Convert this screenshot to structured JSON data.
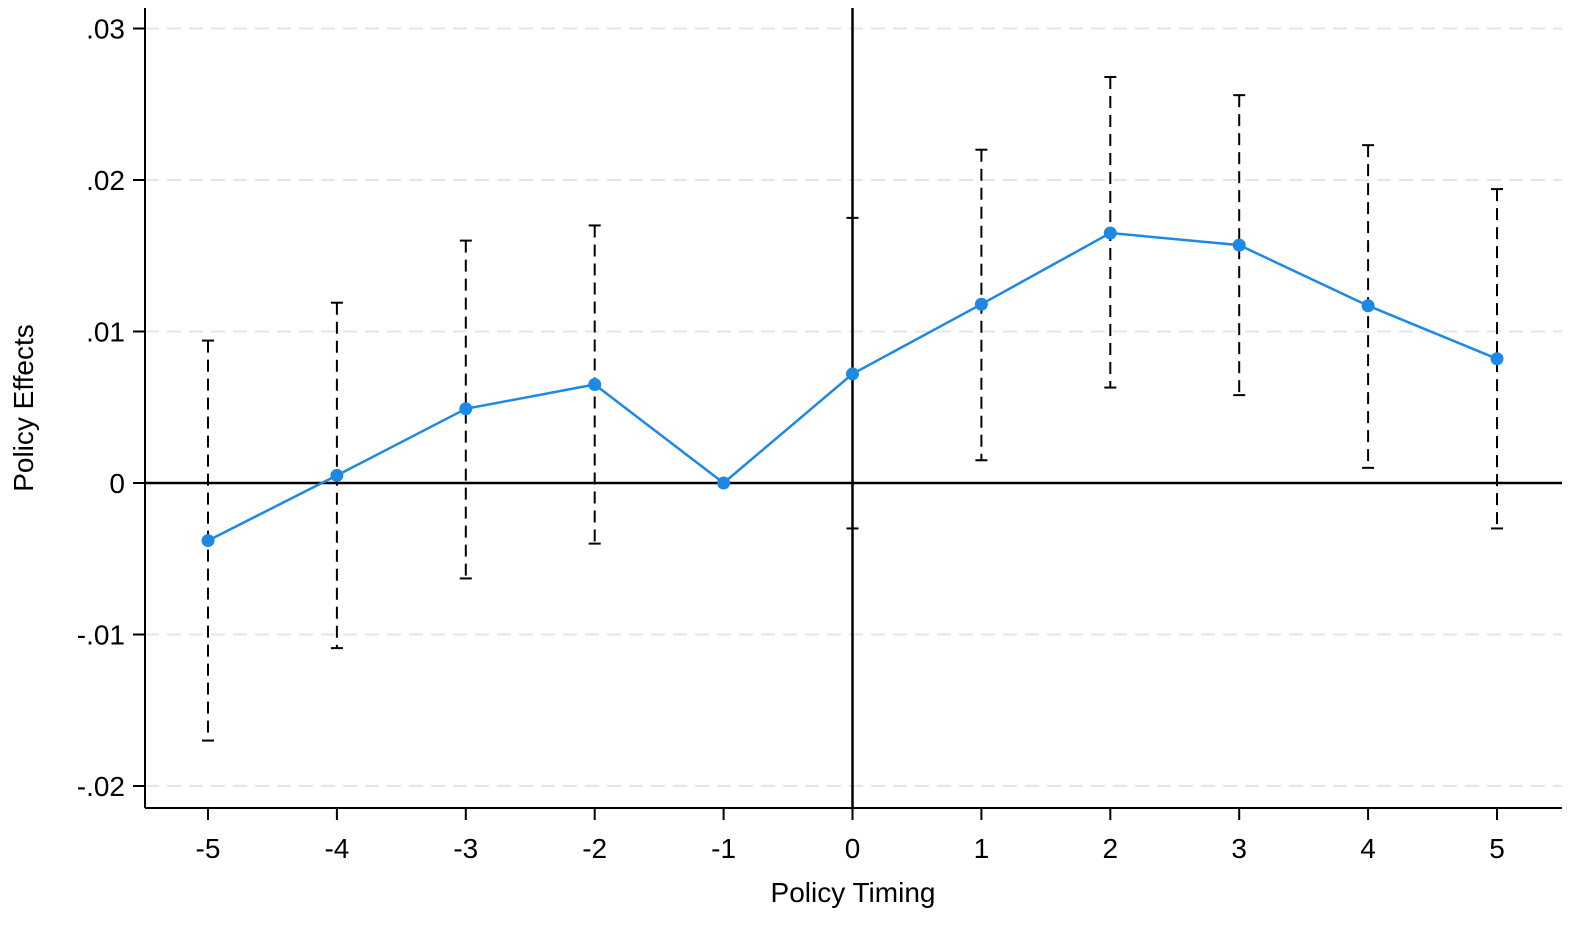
{
  "chart_data": {
    "type": "line",
    "title": "",
    "xlabel": "Policy Timing",
    "ylabel": "Policy Effects",
    "xlim": [
      -5.5,
      5.5
    ],
    "ylim": [
      -0.0215,
      0.0315
    ],
    "x_ticks": [
      -5,
      -4,
      -3,
      -2,
      -1,
      0,
      1,
      2,
      3,
      4,
      5
    ],
    "x_tick_labels": [
      "-5",
      "-4",
      "-3",
      "-2",
      "-1",
      "0",
      "1",
      "2",
      "3",
      "4",
      "5"
    ],
    "y_ticks": [
      -0.02,
      -0.01,
      0,
      0.01,
      0.02,
      0.03
    ],
    "y_tick_labels": [
      "-.02",
      "-.01",
      "0",
      ".01",
      ".02",
      ".03"
    ],
    "grid": "horizontal dashed",
    "reference_lines": {
      "y": 0,
      "x": 0
    },
    "series": [
      {
        "x": [
          -5,
          -4,
          -3,
          -2,
          -1,
          0,
          1,
          2,
          3,
          4,
          5
        ],
        "values": [
          -0.0038,
          0.0005,
          0.0049,
          0.0065,
          0.0,
          0.0072,
          0.0118,
          0.0165,
          0.0157,
          0.0117,
          0.0082
        ],
        "ci_lower": [
          -0.017,
          -0.0109,
          -0.0063,
          -0.004,
          null,
          -0.003,
          0.0015,
          0.0063,
          0.0058,
          0.001,
          -0.003
        ],
        "ci_upper": [
          0.0094,
          0.0119,
          0.016,
          0.017,
          null,
          0.0175,
          0.022,
          0.0268,
          0.0256,
          0.0223,
          0.0194
        ]
      }
    ],
    "colors": {
      "line": "#1e88e5",
      "marker": "#1e88e5",
      "ci": "#000000",
      "grid": "#e6e6e6",
      "axis": "#000000"
    }
  }
}
